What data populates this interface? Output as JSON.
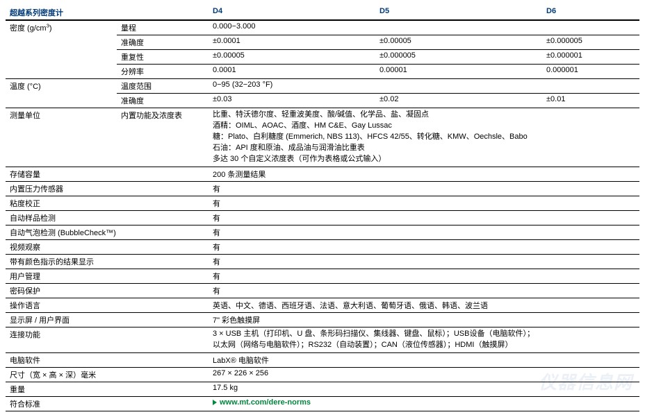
{
  "colors": {
    "header_text": "#003a78",
    "link_text": "#00883d",
    "border": "#000000",
    "background": "#ffffff",
    "watermark": "rgba(0,70,150,0.08)"
  },
  "header": {
    "title": "超越系列密度计",
    "cols": [
      "D4",
      "D5",
      "D6"
    ]
  },
  "density": {
    "label": "密度 (g/cm³)",
    "rows": {
      "range": {
        "label": "量程",
        "span": "0.000−3.000"
      },
      "accuracy": {
        "label": "准确度",
        "d4": "±0.0001",
        "d5": "±0.00005",
        "d6": "±0.000005"
      },
      "repeat": {
        "label": "重复性",
        "d4": "±0.00005",
        "d5": "±0.000005",
        "d6": "±0.000001"
      },
      "res": {
        "label": "分辨率",
        "d4": "0.0001",
        "d5": "0.00001",
        "d6": "0.000001"
      }
    }
  },
  "temp": {
    "label": "温度 (°C)",
    "rows": {
      "range": {
        "label": "温度范围",
        "span": "0−95 (32−203 °F)"
      },
      "accuracy": {
        "label": "准确度",
        "d4": "±0.03",
        "d5": "±0.02",
        "d6": "±0.01"
      }
    }
  },
  "units": {
    "label": "测量单位",
    "sublabel": "内置功能及浓度表",
    "lines": [
      "比重、特沃德尔度、轻重波美度、酸/碱值、化学品、盐、凝固点",
      "酒精：OIML、AOAC、酒度、HM C&E、Gay Lussac",
      "糖：Plato、白利糖度 (Emmerich, NBS 113)、HFCS 42/55、转化糖、KMW、Oechsle、Babo",
      "石油：API 度和原油、成品油与润滑油比重表",
      "多达 30 个自定义浓度表（可作为表格或公式输入）"
    ]
  },
  "simple_rows": [
    {
      "label": "存储容量",
      "value": "200 条测量结果"
    },
    {
      "label": "内置压力传感器",
      "value": "有"
    },
    {
      "label": "粘度校正",
      "value": "有"
    },
    {
      "label": "自动样品检测",
      "value": "有"
    },
    {
      "label": "自动气泡检测 (BubbleCheck™)",
      "value": "有"
    },
    {
      "label": "视频观察",
      "value": "有"
    },
    {
      "label": "带有颜色指示的结果显示",
      "value": "有"
    },
    {
      "label": "用户管理",
      "value": "有"
    },
    {
      "label": "密码保护",
      "value": "有"
    },
    {
      "label": "操作语言",
      "value": "英语、中文、德语、西班牙语、法语、意大利语、葡萄牙语、俄语、韩语、波兰语"
    },
    {
      "label": "显示屏 / 用户界面",
      "value": "7\" 彩色触摸屏"
    }
  ],
  "connectivity": {
    "label": "连接功能",
    "lines": [
      "3 × USB 主机（打印机、U 盘、条形码扫描仪、集线器、键盘、鼠标）；USB设备（电脑软件）；",
      "以太网（网络与电脑软件）；RS232（自动装置）；CAN（液位传感器）；HDMI（触摸屏）"
    ]
  },
  "tail_rows": [
    {
      "label": "电脑软件",
      "value": "LabX® 电脑软件"
    },
    {
      "label": "尺寸（宽 × 高 × 深）毫米",
      "value": "267 × 226 × 256"
    },
    {
      "label": "重量",
      "value": "17.5 kg"
    }
  ],
  "standards": {
    "label": "符合标准",
    "link": "www.mt.com/dere-norms"
  },
  "watermark": "仪器信息网"
}
